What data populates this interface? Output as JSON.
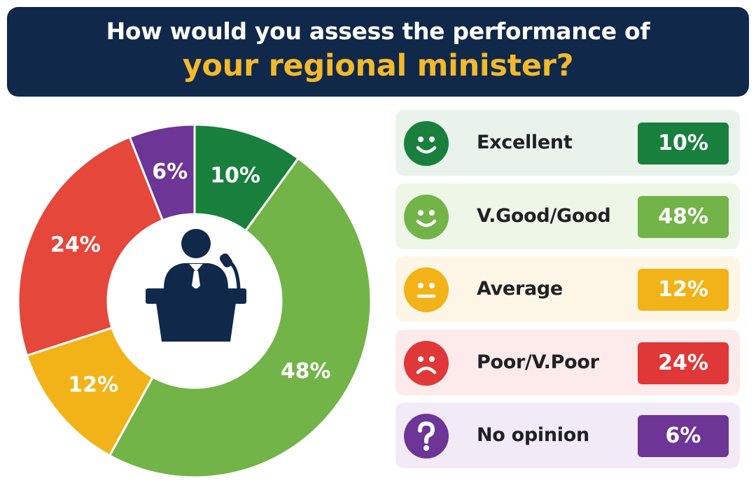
{
  "title": {
    "line1": "How would you assess the performance of",
    "line2": "your regional minister?"
  },
  "chart_data": {
    "type": "pie",
    "variant": "donut",
    "center_icon": "speaker-at-podium-icon",
    "categories": [
      "Excellent",
      "V.Good/Good",
      "Average",
      "Poor/V.Poor",
      "No opinion"
    ],
    "values": [
      10,
      48,
      12,
      24,
      6
    ],
    "labels": [
      "10%",
      "48%",
      "12%",
      "24%",
      "6%"
    ],
    "colors": [
      "#18803c",
      "#73b448",
      "#f2b318",
      "#e5473a",
      "#6c3596"
    ],
    "unit": "%"
  },
  "legend": [
    {
      "label": "Excellent",
      "value": "10%",
      "icon": "smile-face-icon",
      "color": "#18803c",
      "background": "#e9f3ec"
    },
    {
      "label": "V.Good/Good",
      "value": "48%",
      "icon": "smile-face-icon",
      "color": "#73b448",
      "background": "#eef6e8"
    },
    {
      "label": "Average",
      "value": "12%",
      "icon": "neutral-face-icon",
      "color": "#f2b318",
      "background": "#fdf6e6"
    },
    {
      "label": "Poor/V.Poor",
      "value": "24%",
      "icon": "sad-face-icon",
      "color": "#e03838",
      "background": "#fcebea"
    },
    {
      "label": "No opinion",
      "value": "6%",
      "icon": "question-mark-icon",
      "color": "#6c3596",
      "background": "#f2ebf7"
    }
  ]
}
